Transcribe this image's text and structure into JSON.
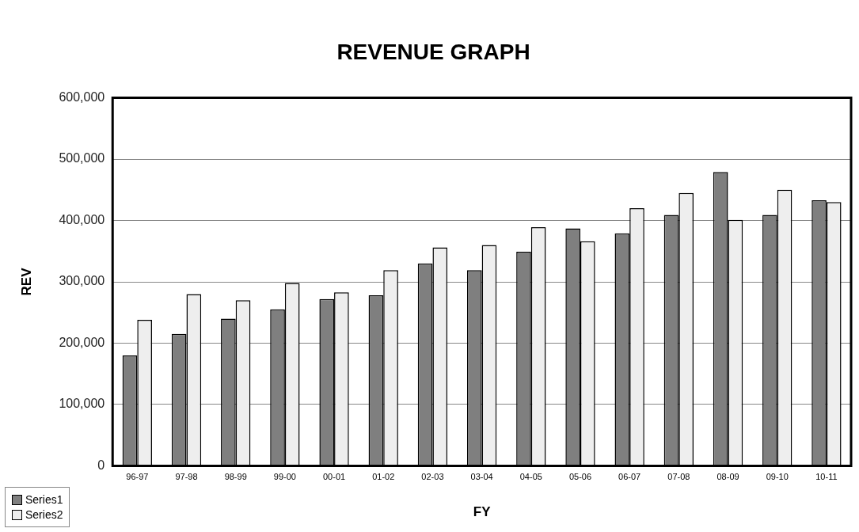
{
  "chart_data": {
    "type": "bar",
    "title": "REVENUE GRAPH",
    "xlabel": "FY",
    "ylabel": "REV",
    "categories": [
      "96-97",
      "97-98",
      "98-99",
      "99-00",
      "00-01",
      "01-02",
      "02-03",
      "03-04",
      "04-05",
      "05-06",
      "06-07",
      "07-08",
      "08-09",
      "09-10",
      "10-11"
    ],
    "series": [
      {
        "name": "Series1",
        "color": "#7f7f7f",
        "values": [
          180000,
          215000,
          240000,
          255000,
          272000,
          278000,
          330000,
          319000,
          349000,
          387000,
          379000,
          409000,
          479000,
          409000,
          433000
        ]
      },
      {
        "name": "Series2",
        "color": "#eeeeee",
        "values": [
          238000,
          280000,
          270000,
          298000,
          283000,
          319000,
          356000,
          360000,
          389000,
          366000,
          420000,
          445000,
          401000,
          450000,
          430000
        ]
      }
    ],
    "ylim": [
      0,
      600000
    ],
    "yticks": [
      {
        "value": 0,
        "label": "0"
      },
      {
        "value": 100000,
        "label": "100,000"
      },
      {
        "value": 200000,
        "label": "200,000"
      },
      {
        "value": 300000,
        "label": "300,000"
      },
      {
        "value": 400000,
        "label": "400,000"
      },
      {
        "value": 500000,
        "label": "500,000"
      },
      {
        "value": 600000,
        "label": "600,000"
      }
    ],
    "grid": "y",
    "legend": "bottom left"
  }
}
